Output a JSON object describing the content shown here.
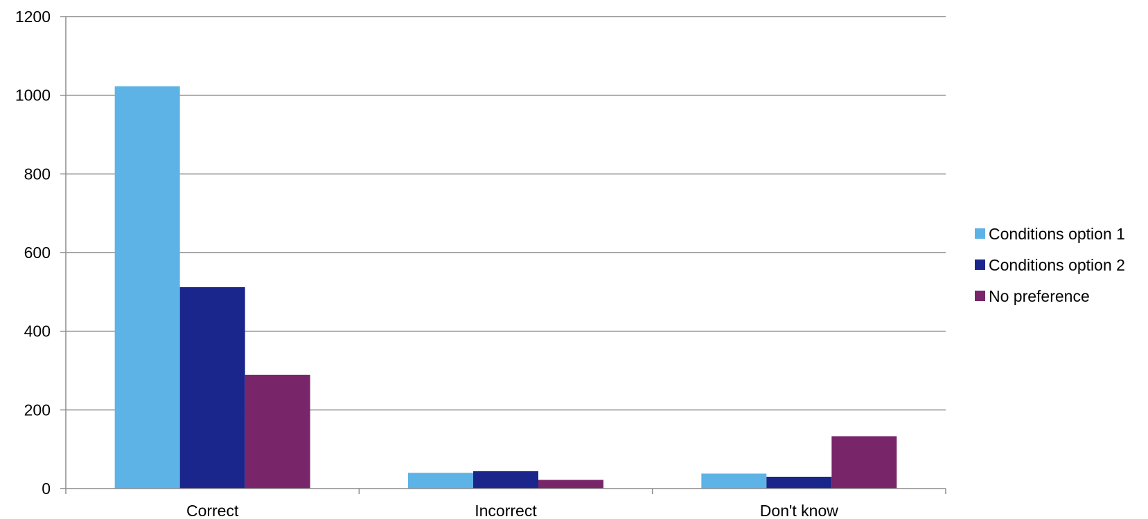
{
  "chart_data": {
    "type": "bar",
    "categories": [
      "Correct",
      "Incorrect",
      "Don't know"
    ],
    "series": [
      {
        "name": "Conditions option 1",
        "color": "#5EB3E6",
        "values": [
          1023,
          40,
          38
        ]
      },
      {
        "name": "Conditions option 2",
        "color": "#1B268C",
        "values": [
          512,
          44,
          30
        ]
      },
      {
        "name": "No preference",
        "color": "#78256A",
        "values": [
          289,
          22,
          133
        ]
      }
    ],
    "ylim": [
      0,
      1200
    ],
    "yticks": [
      0,
      200,
      400,
      600,
      800,
      1000,
      1200
    ],
    "grid": true,
    "legend": "right",
    "gridline_color": "#8C8C8C"
  }
}
